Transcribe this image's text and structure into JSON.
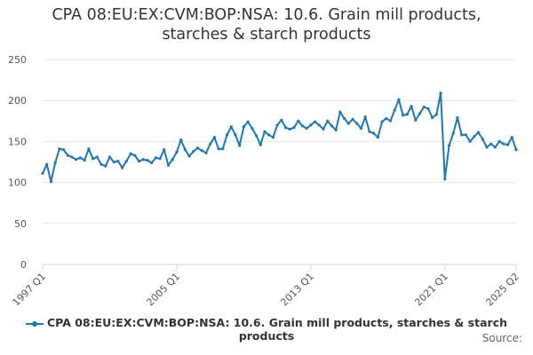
{
  "chart_data": {
    "type": "line",
    "title_lines": [
      "CPA 08:EU:EX:CVM:BOP:NSA: 10.6. Grain mill products,",
      "starches & starch products"
    ],
    "xlabel": "",
    "ylabel": "",
    "ylim": [
      0,
      250
    ],
    "yticks": [
      0,
      50,
      100,
      150,
      200,
      250
    ],
    "xtick_labels": [
      "1997 Q1",
      "2005 Q1",
      "2013 Q1",
      "2021 Q1",
      "2025 Q2"
    ],
    "grid": true,
    "legend_position": "bottom",
    "series": [
      {
        "name": "CPA 08:EU:EX:CVM:BOP:NSA: 10.6. Grain mill products, starches & starch products",
        "color": "#1f77b4",
        "start_quarter": "1997 Q1",
        "values": [
          111,
          122,
          101,
          124,
          141,
          140,
          133,
          131,
          128,
          130,
          127,
          141,
          129,
          131,
          122,
          120,
          131,
          125,
          126,
          118,
          126,
          135,
          133,
          126,
          128,
          127,
          124,
          130,
          129,
          140,
          121,
          128,
          137,
          152,
          140,
          132,
          138,
          142,
          139,
          136,
          147,
          155,
          141,
          141,
          158,
          168,
          158,
          145,
          168,
          174,
          166,
          157,
          146,
          162,
          158,
          155,
          170,
          176,
          167,
          165,
          167,
          175,
          169,
          166,
          170,
          174,
          170,
          165,
          175,
          169,
          164,
          186,
          178,
          172,
          177,
          172,
          166,
          180,
          162,
          160,
          155,
          174,
          178,
          175,
          188,
          201,
          182,
          183,
          193,
          176,
          184,
          192,
          190,
          179,
          183,
          209,
          104,
          145,
          160,
          179,
          158,
          158,
          150,
          156,
          161,
          153,
          143,
          147,
          143,
          150,
          147,
          146,
          155,
          140
        ]
      }
    ]
  },
  "legend": {
    "label": "CPA 08:EU:EX:CVM:BOP:NSA: 10.6. Grain mill products, starches & starch products"
  },
  "source": {
    "label": "Source:"
  }
}
